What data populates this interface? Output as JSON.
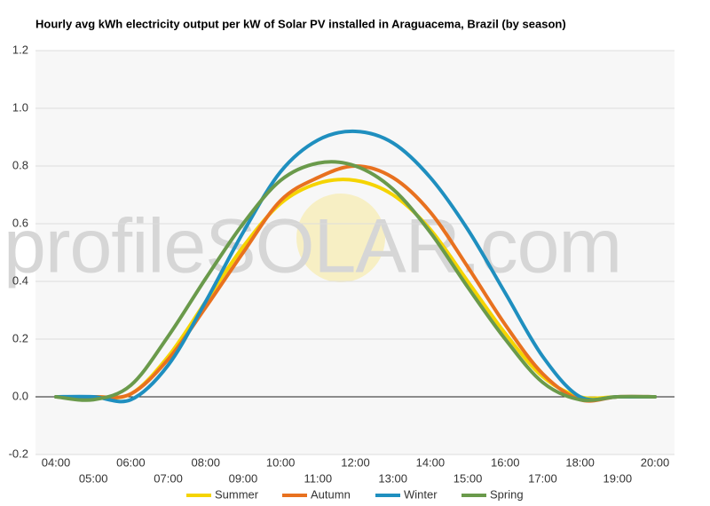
{
  "chart_data": {
    "type": "line",
    "title": "Hourly avg kWh electricity output per kW of Solar PV installed in Araguacema, Brazil (by season)",
    "watermark": "profileSOLAR.com",
    "categories": [
      "04:00",
      "05:00",
      "06:00",
      "07:00",
      "08:00",
      "09:00",
      "10:00",
      "11:00",
      "12:00",
      "13:00",
      "14:00",
      "15:00",
      "16:00",
      "17:00",
      "18:00",
      "19:00",
      "20:00"
    ],
    "series": [
      {
        "name": "Summer",
        "color": "#f5d400",
        "values": [
          0,
          0,
          0.01,
          0.14,
          0.33,
          0.52,
          0.67,
          0.74,
          0.75,
          0.7,
          0.58,
          0.4,
          0.22,
          0.07,
          0.0,
          0,
          0
        ]
      },
      {
        "name": "Autumn",
        "color": "#e8711f",
        "values": [
          0,
          0,
          0.01,
          0.13,
          0.31,
          0.5,
          0.68,
          0.76,
          0.8,
          0.76,
          0.64,
          0.45,
          0.25,
          0.08,
          -0.01,
          0,
          0
        ]
      },
      {
        "name": "Winter",
        "color": "#1f8fbf",
        "values": [
          0,
          0,
          -0.01,
          0.11,
          0.33,
          0.57,
          0.78,
          0.89,
          0.92,
          0.88,
          0.76,
          0.58,
          0.36,
          0.14,
          0.0,
          0,
          0
        ]
      },
      {
        "name": "Spring",
        "color": "#6a9a4b",
        "values": [
          0,
          -0.01,
          0.04,
          0.21,
          0.41,
          0.6,
          0.75,
          0.81,
          0.8,
          0.72,
          0.57,
          0.38,
          0.2,
          0.05,
          -0.01,
          0,
          0
        ]
      }
    ],
    "ylim": [
      -0.2,
      1.2
    ],
    "yticks": [
      -0.2,
      {
        "value": 0,
        "label": "0.0"
      },
      0.2,
      0.4,
      0.6,
      0.8,
      {
        "value": 1,
        "label": "1.0"
      },
      1.2
    ],
    "grid": true,
    "legend": "bottom"
  }
}
